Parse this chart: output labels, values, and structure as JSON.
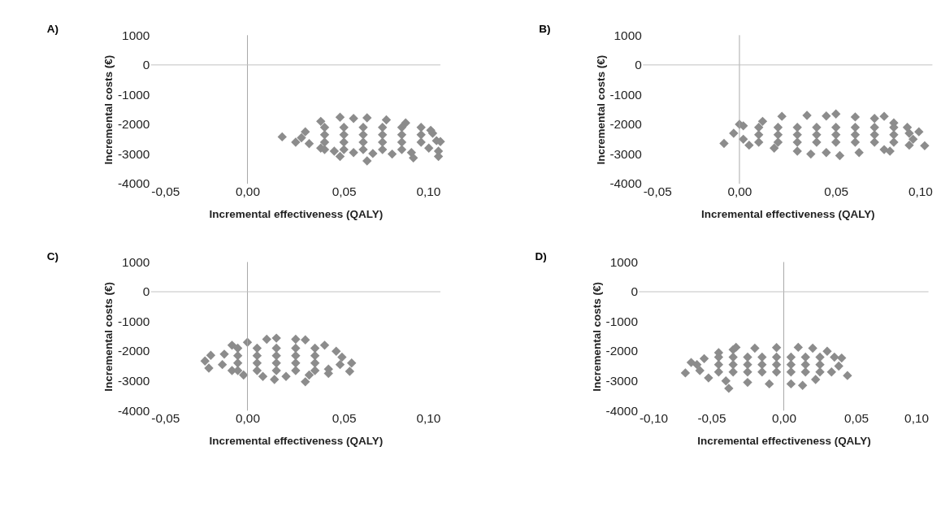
{
  "chart_data": [
    {
      "type": "scatter",
      "title": "A)",
      "xlabel": "Incremental effectiveness (QALY)",
      "ylabel": "Incremental costs (€)",
      "color": "#8c8c8c",
      "marker": "diamond",
      "grid": false,
      "x": [
        0.03,
        0.028,
        0.032,
        0.038,
        0.048,
        0.055,
        0.062,
        0.072,
        0.082,
        0.09,
        0.096,
        0.098,
        0.094,
        0.085,
        0.075,
        0.065,
        0.055,
        0.045,
        0.038,
        0.018,
        0.025,
        0.048,
        0.062,
        0.086,
        0.099,
        0.099,
        0.1,
        0.095,
        0.04,
        0.04,
        0.04,
        0.04,
        0.05,
        0.05,
        0.05,
        0.05,
        0.06,
        0.06,
        0.06,
        0.06,
        0.07,
        0.07,
        0.07,
        0.07,
        0.08,
        0.08,
        0.08,
        0.08,
        0.09,
        0.09
      ],
      "values": [
        -2250,
        -2450,
        -2650,
        -1900,
        -1760,
        -1800,
        -1780,
        -1850,
        -1950,
        -2100,
        -2300,
        -2550,
        -2800,
        -2950,
        -3000,
        -2980,
        -2950,
        -2900,
        -2800,
        -2420,
        -2600,
        -3080,
        -3230,
        -3130,
        -3080,
        -2900,
        -2580,
        -2200,
        -2100,
        -2350,
        -2600,
        -2850,
        -2100,
        -2350,
        -2600,
        -2850,
        -2100,
        -2350,
        -2600,
        -2850,
        -2100,
        -2350,
        -2600,
        -2850,
        -2100,
        -2350,
        -2600,
        -2850,
        -2350,
        -2600
      ],
      "xlim": [
        -0.05,
        0.1
      ],
      "xticks": [
        {
          "value": -0.05,
          "label": "-0,05"
        },
        {
          "value": 0,
          "label": "0,00"
        },
        {
          "value": 0.05,
          "label": "0,05"
        },
        {
          "value": 0.1,
          "label": "0,10"
        }
      ],
      "ylim": [
        -4000,
        1000
      ],
      "yticks": [
        -4000,
        -3000,
        -2000,
        -1000,
        0,
        1000
      ],
      "ref_lines": [
        {
          "axis": "x",
          "value": 0,
          "color": "#a6a6a6"
        },
        {
          "axis": "y",
          "value": 0,
          "color": "#bfbfbf"
        }
      ]
    },
    {
      "type": "scatter",
      "title": "B)",
      "xlabel": "Incremental effectiveness (QALY)",
      "ylabel": "Incremental costs (€)",
      "color": "#8c8c8c",
      "marker": "diamond",
      "grid": false,
      "x": [
        0.002,
        0.002,
        0.005,
        0.012,
        0.022,
        0.035,
        0.045,
        0.06,
        0.07,
        0.08,
        0.088,
        0.09,
        0.088,
        0.075,
        0.062,
        0.045,
        0.03,
        0.018,
        -0.008,
        -0.003,
        0.0,
        0.05,
        0.075,
        0.087,
        0.093,
        0.096,
        0.078,
        0.052,
        0.037,
        0.01,
        0.01,
        0.01,
        0.02,
        0.02,
        0.02,
        0.03,
        0.03,
        0.03,
        0.04,
        0.04,
        0.04,
        0.05,
        0.05,
        0.05,
        0.06,
        0.06,
        0.06,
        0.07,
        0.07,
        0.07,
        0.08,
        0.08,
        0.08
      ],
      "values": [
        -2050,
        -2500,
        -2700,
        -1900,
        -1730,
        -1700,
        -1720,
        -1750,
        -1800,
        -1950,
        -2300,
        -2500,
        -2700,
        -2850,
        -2950,
        -2950,
        -2900,
        -2800,
        -2640,
        -2300,
        -2000,
        -1650,
        -1730,
        -2100,
        -2250,
        -2720,
        -2900,
        -3050,
        -3000,
        -2100,
        -2350,
        -2600,
        -2100,
        -2350,
        -2600,
        -2100,
        -2350,
        -2600,
        -2100,
        -2350,
        -2600,
        -2100,
        -2350,
        -2600,
        -2100,
        -2350,
        -2600,
        -2100,
        -2350,
        -2600,
        -2100,
        -2350,
        -2600
      ],
      "xlim": [
        -0.05,
        0.1
      ],
      "xticks": [
        {
          "value": -0.05,
          "label": "-0,05"
        },
        {
          "value": 0,
          "label": "0,00"
        },
        {
          "value": 0.05,
          "label": "0,05"
        },
        {
          "value": 0.1,
          "label": "0,10"
        }
      ],
      "ylim": [
        -4000,
        1000
      ],
      "yticks": [
        -4000,
        -3000,
        -2000,
        -1000,
        0,
        1000
      ],
      "ref_lines": [
        {
          "axis": "x",
          "value": 0,
          "color": "#a6a6a6"
        },
        {
          "axis": "y",
          "value": 0,
          "color": "#bfbfbf"
        }
      ]
    },
    {
      "type": "scatter",
      "title": "C)",
      "xlabel": "Incremental effectiveness (QALY)",
      "ylabel": "Incremental costs (€)",
      "color": "#8c8c8c",
      "marker": "diamond",
      "grid": false,
      "x": [
        -0.012,
        -0.013,
        -0.008,
        0.0,
        0.01,
        0.015,
        0.025,
        0.03,
        0.04,
        0.046,
        0.049,
        0.048,
        0.042,
        0.032,
        0.02,
        0.008,
        -0.002,
        -0.008,
        -0.022,
        -0.019,
        -0.02,
        0.054,
        0.053,
        0.042,
        0.03,
        0.014,
        -0.005,
        -0.005,
        -0.005,
        -0.005,
        0.005,
        0.005,
        0.005,
        0.005,
        0.015,
        0.015,
        0.015,
        0.015,
        0.025,
        0.025,
        0.025,
        0.025,
        0.035,
        0.035,
        0.035,
        0.035
      ],
      "values": [
        -2100,
        -2450,
        -1800,
        -1700,
        -1600,
        -1560,
        -1600,
        -1620,
        -1800,
        -2000,
        -2200,
        -2450,
        -2600,
        -2800,
        -2850,
        -2850,
        -2800,
        -2650,
        -2330,
        -2140,
        -2570,
        -2400,
        -2680,
        -2750,
        -3030,
        -2950,
        -1900,
        -2150,
        -2400,
        -2650,
        -1900,
        -2150,
        -2400,
        -2650,
        -1900,
        -2150,
        -2400,
        -2650,
        -1900,
        -2150,
        -2400,
        -2650,
        -1900,
        -2150,
        -2400,
        -2650
      ],
      "xlim": [
        -0.05,
        0.1
      ],
      "xticks": [
        {
          "value": -0.05,
          "label": "-0,05"
        },
        {
          "value": 0,
          "label": "0,00"
        },
        {
          "value": 0.05,
          "label": "0,05"
        },
        {
          "value": 0.1,
          "label": "0,10"
        }
      ],
      "ylim": [
        -4000,
        1000
      ],
      "yticks": [
        -4000,
        -3000,
        -2000,
        -1000,
        0,
        1000
      ],
      "ref_lines": [
        {
          "axis": "x",
          "value": 0,
          "color": "#a6a6a6"
        },
        {
          "axis": "y",
          "value": 0,
          "color": "#bfbfbf"
        }
      ]
    },
    {
      "type": "scatter",
      "title": "D)",
      "xlabel": "Incremental effectiveness (QALY)",
      "ylabel": "Incremental costs (€)",
      "color": "#8c8c8c",
      "marker": "diamond",
      "grid": false,
      "x": [
        -0.055,
        -0.058,
        -0.052,
        -0.045,
        -0.035,
        -0.02,
        -0.005,
        0.01,
        0.02,
        0.03,
        0.035,
        0.038,
        0.033,
        0.022,
        0.005,
        -0.01,
        -0.025,
        -0.04,
        -0.068,
        -0.064,
        -0.06,
        -0.038,
        0.013,
        0.044,
        0.04,
        -0.033,
        -0.045,
        -0.045,
        -0.045,
        -0.035,
        -0.035,
        -0.035,
        -0.025,
        -0.025,
        -0.025,
        -0.015,
        -0.015,
        -0.015,
        -0.005,
        -0.005,
        -0.005,
        0.005,
        0.005,
        0.005,
        0.015,
        0.015,
        0.015,
        0.025,
        0.025,
        0.025
      ],
      "values": [
        -2250,
        -2650,
        -2900,
        -2050,
        -1950,
        -1900,
        -1880,
        -1870,
        -1900,
        -2000,
        -2200,
        -2500,
        -2700,
        -2950,
        -3100,
        -3100,
        -3050,
        -3000,
        -2730,
        -2380,
        -2450,
        -3250,
        -3150,
        -2820,
        -2230,
        -1870,
        -2200,
        -2450,
        -2700,
        -2200,
        -2450,
        -2700,
        -2200,
        -2450,
        -2700,
        -2200,
        -2450,
        -2700,
        -2200,
        -2450,
        -2700,
        -2200,
        -2450,
        -2700,
        -2200,
        -2450,
        -2700,
        -2200,
        -2450,
        -2700
      ],
      "xlim": [
        -0.1,
        0.1
      ],
      "xticks": [
        {
          "value": -0.1,
          "label": "-0,10"
        },
        {
          "value": -0.05,
          "label": "-0,05"
        },
        {
          "value": 0,
          "label": "0,00"
        },
        {
          "value": 0.05,
          "label": "0,05"
        },
        {
          "value": 0.1,
          "label": "0,10"
        }
      ],
      "ylim": [
        -4000,
        1000
      ],
      "yticks": [
        -4000,
        -3000,
        -2000,
        -1000,
        0,
        1000
      ],
      "ref_lines": [
        {
          "axis": "x",
          "value": 0,
          "color": "#a6a6a6"
        },
        {
          "axis": "y",
          "value": 0,
          "color": "#bfbfbf"
        }
      ]
    }
  ]
}
